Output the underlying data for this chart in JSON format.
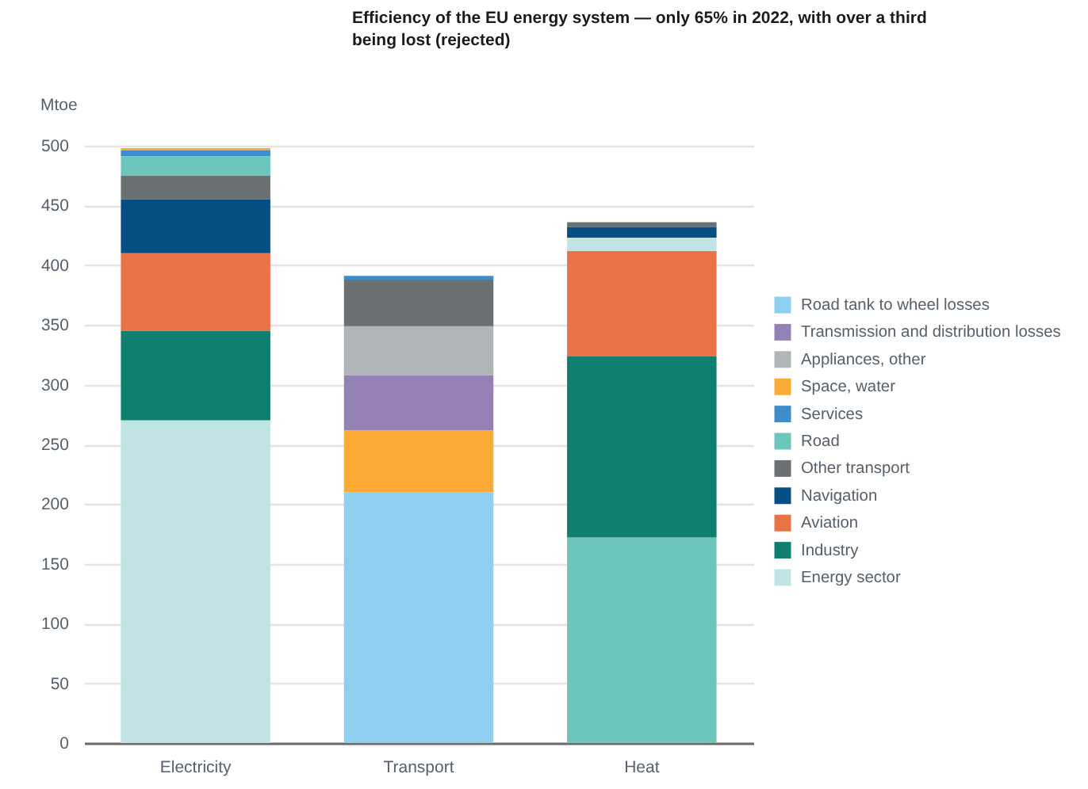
{
  "chart_data": {
    "type": "bar",
    "title": "Efficiency of the EU energy system — only 65% in 2022, with over a third being lost (rejected)",
    "ylabel": "Mtoe",
    "categories": [
      "Electricity",
      "Transport",
      "Heat"
    ],
    "series": [
      {
        "name": "Road tank to wheel losses",
        "color": "#8ecff0",
        "values": [
          null,
          210,
          null
        ],
        "base": [
          null,
          0,
          null
        ]
      },
      {
        "name": "Transmission and distribution losses",
        "color": "#9581b5",
        "values": [
          null,
          46,
          null
        ],
        "base": [
          null,
          262,
          null
        ]
      },
      {
        "name": "Appliances, other",
        "color": "#b0b5b7",
        "values": [
          null,
          41,
          null
        ],
        "base": [
          null,
          308,
          null
        ]
      },
      {
        "name": "Space, water",
        "color": "#fbaa35",
        "values": [
          2,
          52,
          null
        ],
        "base": [
          496,
          210,
          null
        ]
      },
      {
        "name": "Services",
        "color": "#3d8ccb",
        "values": [
          5,
          3,
          null
        ],
        "base": [
          491,
          388,
          null
        ]
      },
      {
        "name": "Road",
        "color": "#6cc6bb",
        "values": [
          16,
          null,
          172
        ],
        "base": [
          475,
          null,
          0
        ]
      },
      {
        "name": "Other transport",
        "color": "#6b7073",
        "values": [
          20,
          39,
          4
        ],
        "base": [
          455,
          349,
          432
        ]
      },
      {
        "name": "Navigation",
        "color": "#064e84",
        "values": [
          45,
          null,
          9
        ],
        "base": [
          410,
          null,
          423
        ]
      },
      {
        "name": "Aviation",
        "color": "#e97344",
        "values": [
          65,
          null,
          88
        ],
        "base": [
          345,
          null,
          324
        ]
      },
      {
        "name": "Industry",
        "color": "#0f7f6f",
        "values": [
          75,
          null,
          152
        ],
        "base": [
          270,
          null,
          172
        ]
      },
      {
        "name": "Energy sector",
        "color": "#c0e4e3",
        "values": [
          270,
          null,
          11
        ],
        "base": [
          0,
          null,
          412
        ]
      }
    ],
    "ylim": [
      0,
      500
    ],
    "yticks": [
      0,
      50,
      100,
      150,
      200,
      250,
      300,
      350,
      400,
      450,
      500
    ],
    "grid": "y",
    "legend": "right"
  }
}
